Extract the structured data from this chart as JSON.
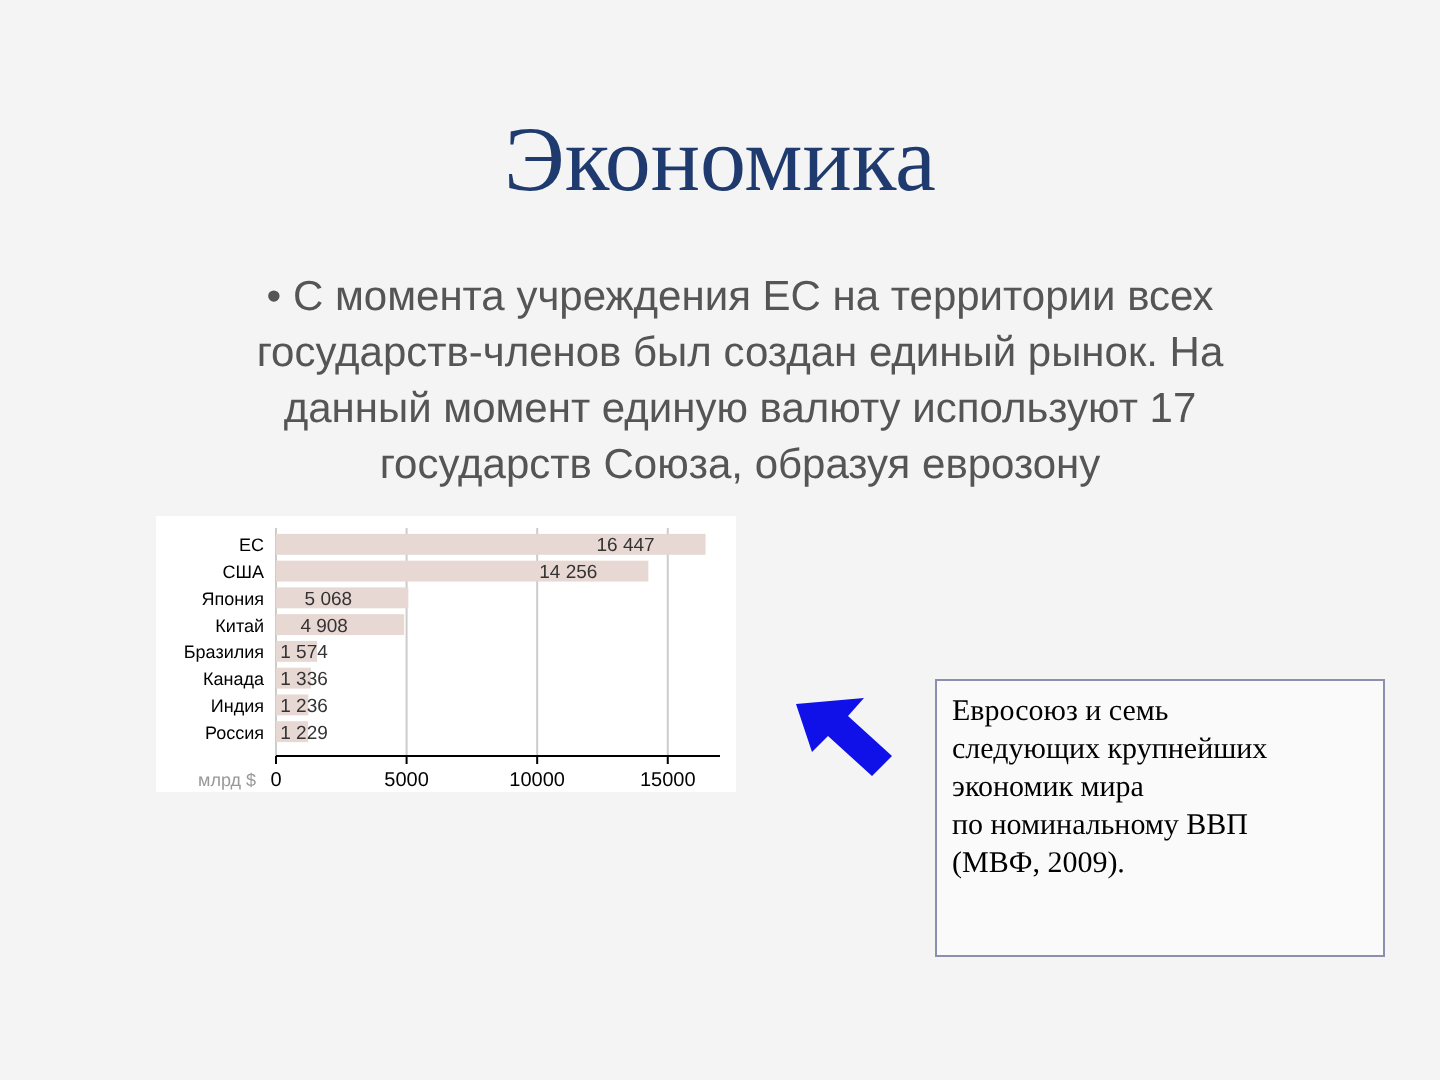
{
  "chart_data": {
    "type": "bar",
    "orientation": "horizontal",
    "title": "Экономика",
    "subtitle": "• С момента учреждения ЕС на территории всех\nгосударств-членов был создан единый рынок. На\nданный момент единую валюту используют 17\nгосударств Союза, образуя еврозону",
    "categories": [
      "ЕС",
      "США",
      "Япония",
      "Китай",
      "Бразилия",
      "Канада",
      "Индия",
      "Россия"
    ],
    "values": [
      16447,
      14256,
      5068,
      4908,
      1574,
      1336,
      1236,
      1229
    ],
    "value_labels": [
      "16 447",
      "14 256",
      "5 068",
      "4 908",
      "1 574",
      "1 336",
      "1 236",
      "1 229"
    ],
    "color": "#e8d8d3",
    "xlabel": "млрд $",
    "xlim": [
      0,
      17000
    ],
    "xticks": [
      0,
      5000,
      10000,
      15000
    ],
    "grid": "x",
    "annotations": [
      "Евросоюз и семь\nследующих крупнейших\nэкономик мира\nпо номинальному ВВП\n(МВФ, 2009)."
    ]
  }
}
